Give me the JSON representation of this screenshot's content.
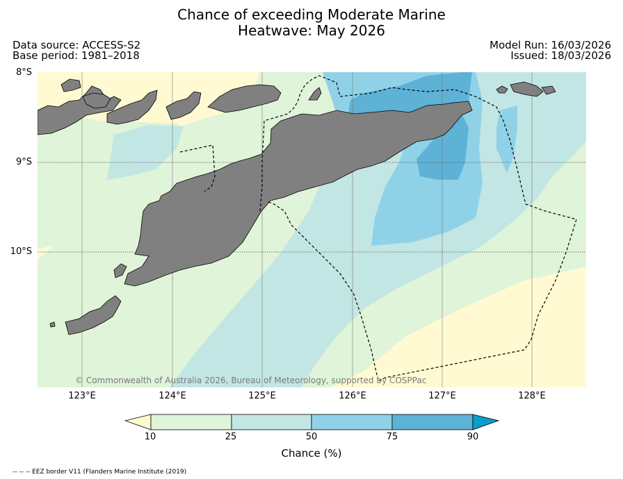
{
  "title_line1": "Chance of exceeding Moderate Marine",
  "title_line2": "Heatwave: May 2026",
  "data_source": "Data source: ACCESS-S2",
  "base_period": "Base period: 1981–2018",
  "model_run": "Model Run: 16/03/2026",
  "issued": "Issued: 18/03/2026",
  "lat_labels": [
    "8°S",
    "9°S",
    "10°S"
  ],
  "lon_labels": [
    "123°E",
    "124°E",
    "125°E",
    "126°E",
    "127°E",
    "128°E"
  ],
  "copyright": "© Commonwealth of Australia 2026, Bureau of Meteorology, supported by COSPPac",
  "colorbar": {
    "ticks": [
      "10",
      "25",
      "50",
      "75",
      "90"
    ],
    "label": "Chance (%)",
    "colors": {
      "below_10": "#fffad2",
      "10_25": "#dff4d8",
      "25_50": "#c2e6e4",
      "50_75": "#8fd2e8",
      "75_90": "#5db2d6",
      "above_90": "#0a9ec9"
    }
  },
  "land_color": "#808080",
  "footer": "-- -- -- EEZ border V11 (Flanders Marine Institute (2019)"
}
